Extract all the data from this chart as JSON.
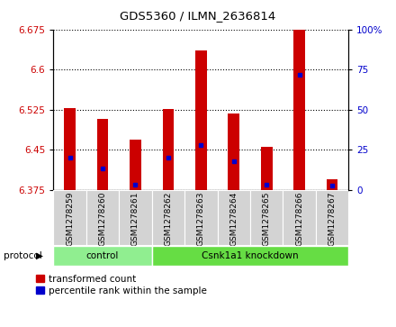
{
  "title": "GDS5360 / ILMN_2636814",
  "samples": [
    "GSM1278259",
    "GSM1278260",
    "GSM1278261",
    "GSM1278262",
    "GSM1278263",
    "GSM1278264",
    "GSM1278265",
    "GSM1278266",
    "GSM1278267"
  ],
  "red_values": [
    6.528,
    6.507,
    6.468,
    6.526,
    6.635,
    6.518,
    6.455,
    6.675,
    6.395
  ],
  "blue_values": [
    6.435,
    6.415,
    6.385,
    6.435,
    6.458,
    6.428,
    6.384,
    6.59,
    6.383
  ],
  "base": 6.375,
  "ylim_left": [
    6.375,
    6.675
  ],
  "ylim_right": [
    0,
    100
  ],
  "yticks_left": [
    6.375,
    6.45,
    6.525,
    6.6,
    6.675
  ],
  "yticks_right": [
    0,
    25,
    50,
    75,
    100
  ],
  "left_color": "#cc0000",
  "right_color": "#0000cc",
  "bar_width": 0.35,
  "control_indices": [
    0,
    1,
    2
  ],
  "knockdown_indices": [
    3,
    4,
    5,
    6,
    7,
    8
  ],
  "control_label": "control",
  "knockdown_label": "Csnk1a1 knockdown",
  "control_color": "#90ee90",
  "knockdown_color": "#66dd44",
  "bg_color": "#d3d3d3",
  "legend_items": [
    "transformed count",
    "percentile rank within the sample"
  ],
  "legend_colors": [
    "#cc0000",
    "#0000cc"
  ]
}
